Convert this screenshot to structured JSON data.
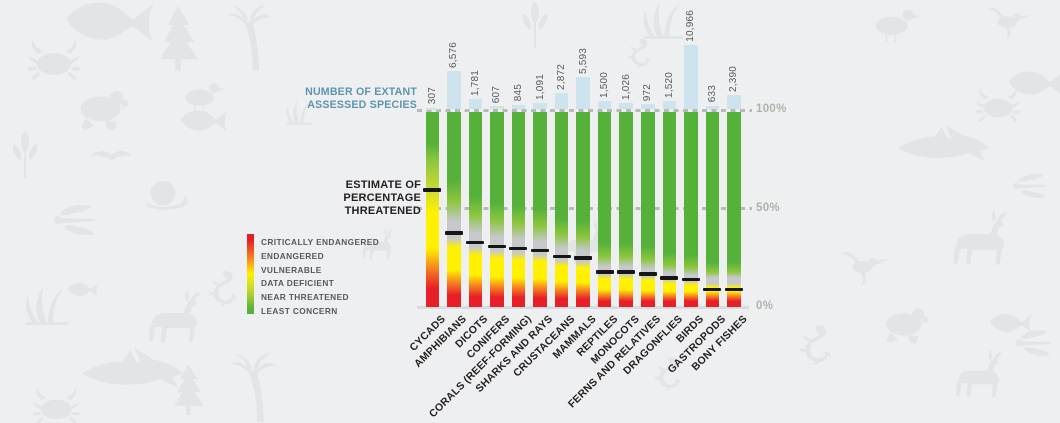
{
  "title_assessed": {
    "line1": "NUMBER OF EXTANT",
    "line2": "ASSESSED SPECIES"
  },
  "title_estimate": {
    "line1": "ESTIMATE OF",
    "line2": "PERCENTAGE",
    "line3": "THREATENED"
  },
  "chart_data": {
    "type": "bar",
    "categories": [
      "CYCADS",
      "AMPHIBIANS",
      "DICOTS",
      "CONIFERS",
      "CORALS (REEF-FORMING)",
      "SHARKS AND RAYS",
      "CRUSTACEANS",
      "MAMMALS",
      "REPTILES",
      "MONOCOTS",
      "FERNS AND RELATIVES",
      "DRAGONFLIES",
      "BIRDS",
      "GASTROPODS",
      "BONY FISHES"
    ],
    "series": [
      {
        "name": "Number of extant assessed species",
        "values": [
          307,
          6576,
          1781,
          607,
          845,
          1091,
          2872,
          5593,
          1500,
          1026,
          972,
          1520,
          10966,
          633,
          2390
        ],
        "display": [
          "307",
          "6,576",
          "1,781",
          "607",
          "845",
          "1,091",
          "2,872",
          "5,593",
          "1,500",
          "1,026",
          "972",
          "1,520",
          "10,966",
          "633",
          "2,390"
        ]
      },
      {
        "name": "Estimate of percentage threatened",
        "unit": "%",
        "values": [
          60,
          38,
          33,
          31,
          30,
          29,
          26,
          25,
          18,
          18,
          17,
          15,
          14,
          9,
          9
        ]
      }
    ],
    "data_deficient_band": [
      false,
      true,
      true,
      true,
      true,
      true,
      true,
      true,
      true,
      true,
      true,
      true,
      true,
      true,
      true
    ],
    "y_axis": {
      "ticks": [
        "100%",
        "50%",
        "0%"
      ],
      "range": [
        0,
        100
      ],
      "gridlines": "dashed at 100% and 50%, solid at 0%"
    },
    "legend": {
      "position": "left",
      "items": [
        "CRITICALLY ENDANGERED",
        "ENDANGERED",
        "VULNERABLE",
        "DATA DEFICIENT",
        "NEAR THREATENED",
        "LEAST CONCERN"
      ]
    }
  },
  "colors": {
    "critically_endangered": "#e71f28",
    "endangered": "#f58220",
    "vulnerable": "#fff101",
    "data_deficient": "#c6c8ca",
    "near_threatened": "#8dc63f",
    "least_concern": "#55b139",
    "assessed_bar": "#cde3ee",
    "assessed_title": "#5f94af",
    "marker": "#161616",
    "tick_label": "#adb3ab",
    "background": "#eeeff0",
    "watermark": "#e2e4e6"
  }
}
